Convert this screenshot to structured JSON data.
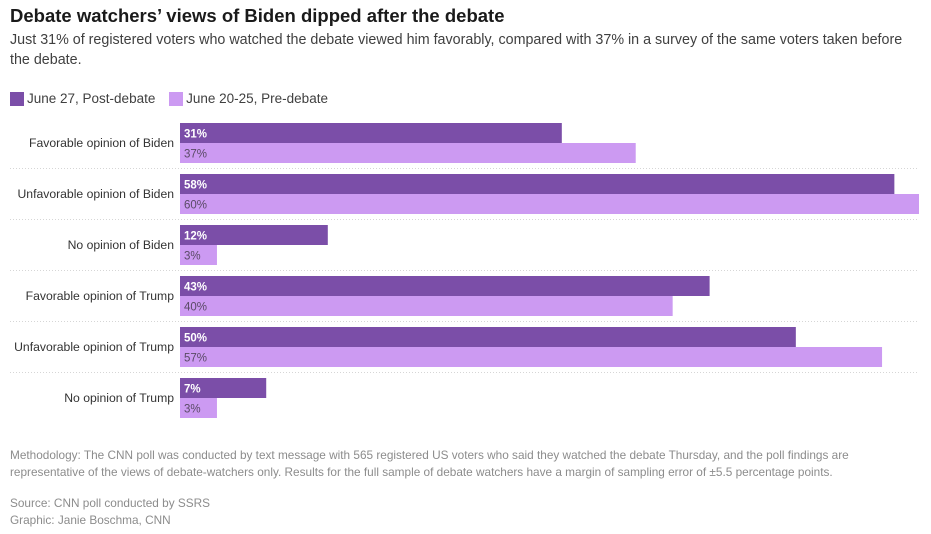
{
  "title": "Debate watchers’ views of Biden dipped after the debate",
  "subtitle": "Just 31% of registered voters who watched the debate viewed him favorably, compared with 37% in a survey of the same voters taken before the debate.",
  "colors": {
    "post": "#7b4ea8",
    "pre": "#cc9af2",
    "grid": "#d6d6d6"
  },
  "chart_data": {
    "type": "bar",
    "orientation": "horizontal",
    "categories": [
      "Favorable opinion of Biden",
      "Unfavorable opinion of Biden",
      "No opinion of Biden",
      "Favorable opinion of Trump",
      "Unfavorable opinion of Trump",
      "No opinion of Trump"
    ],
    "series": [
      {
        "name": "June 27, Post-debate",
        "values": [
          31,
          58,
          12,
          43,
          50,
          7
        ],
        "labels": [
          "31%",
          "58%",
          "12%",
          "43%",
          "50%",
          "7%"
        ]
      },
      {
        "name": "June 20-25, Pre-debate",
        "values": [
          37,
          60,
          3,
          40,
          57,
          3
        ],
        "labels": [
          "37%",
          "60%",
          "3%",
          "40%",
          "57%",
          "3%"
        ]
      }
    ],
    "xlim": [
      0,
      60
    ],
    "legend": "top-left",
    "grid": false
  },
  "methodology": "Methodology: The CNN poll was conducted by text message with 565 registered US voters who said they watched the debate Thursday, and the poll findings are representative of the views of debate-watchers only. Results for the full sample of debate watchers have a margin of sampling error of ±5.5 percentage points.",
  "source": "Source: CNN poll conducted by SSRS",
  "graphic": "Graphic: Janie Boschma, CNN"
}
